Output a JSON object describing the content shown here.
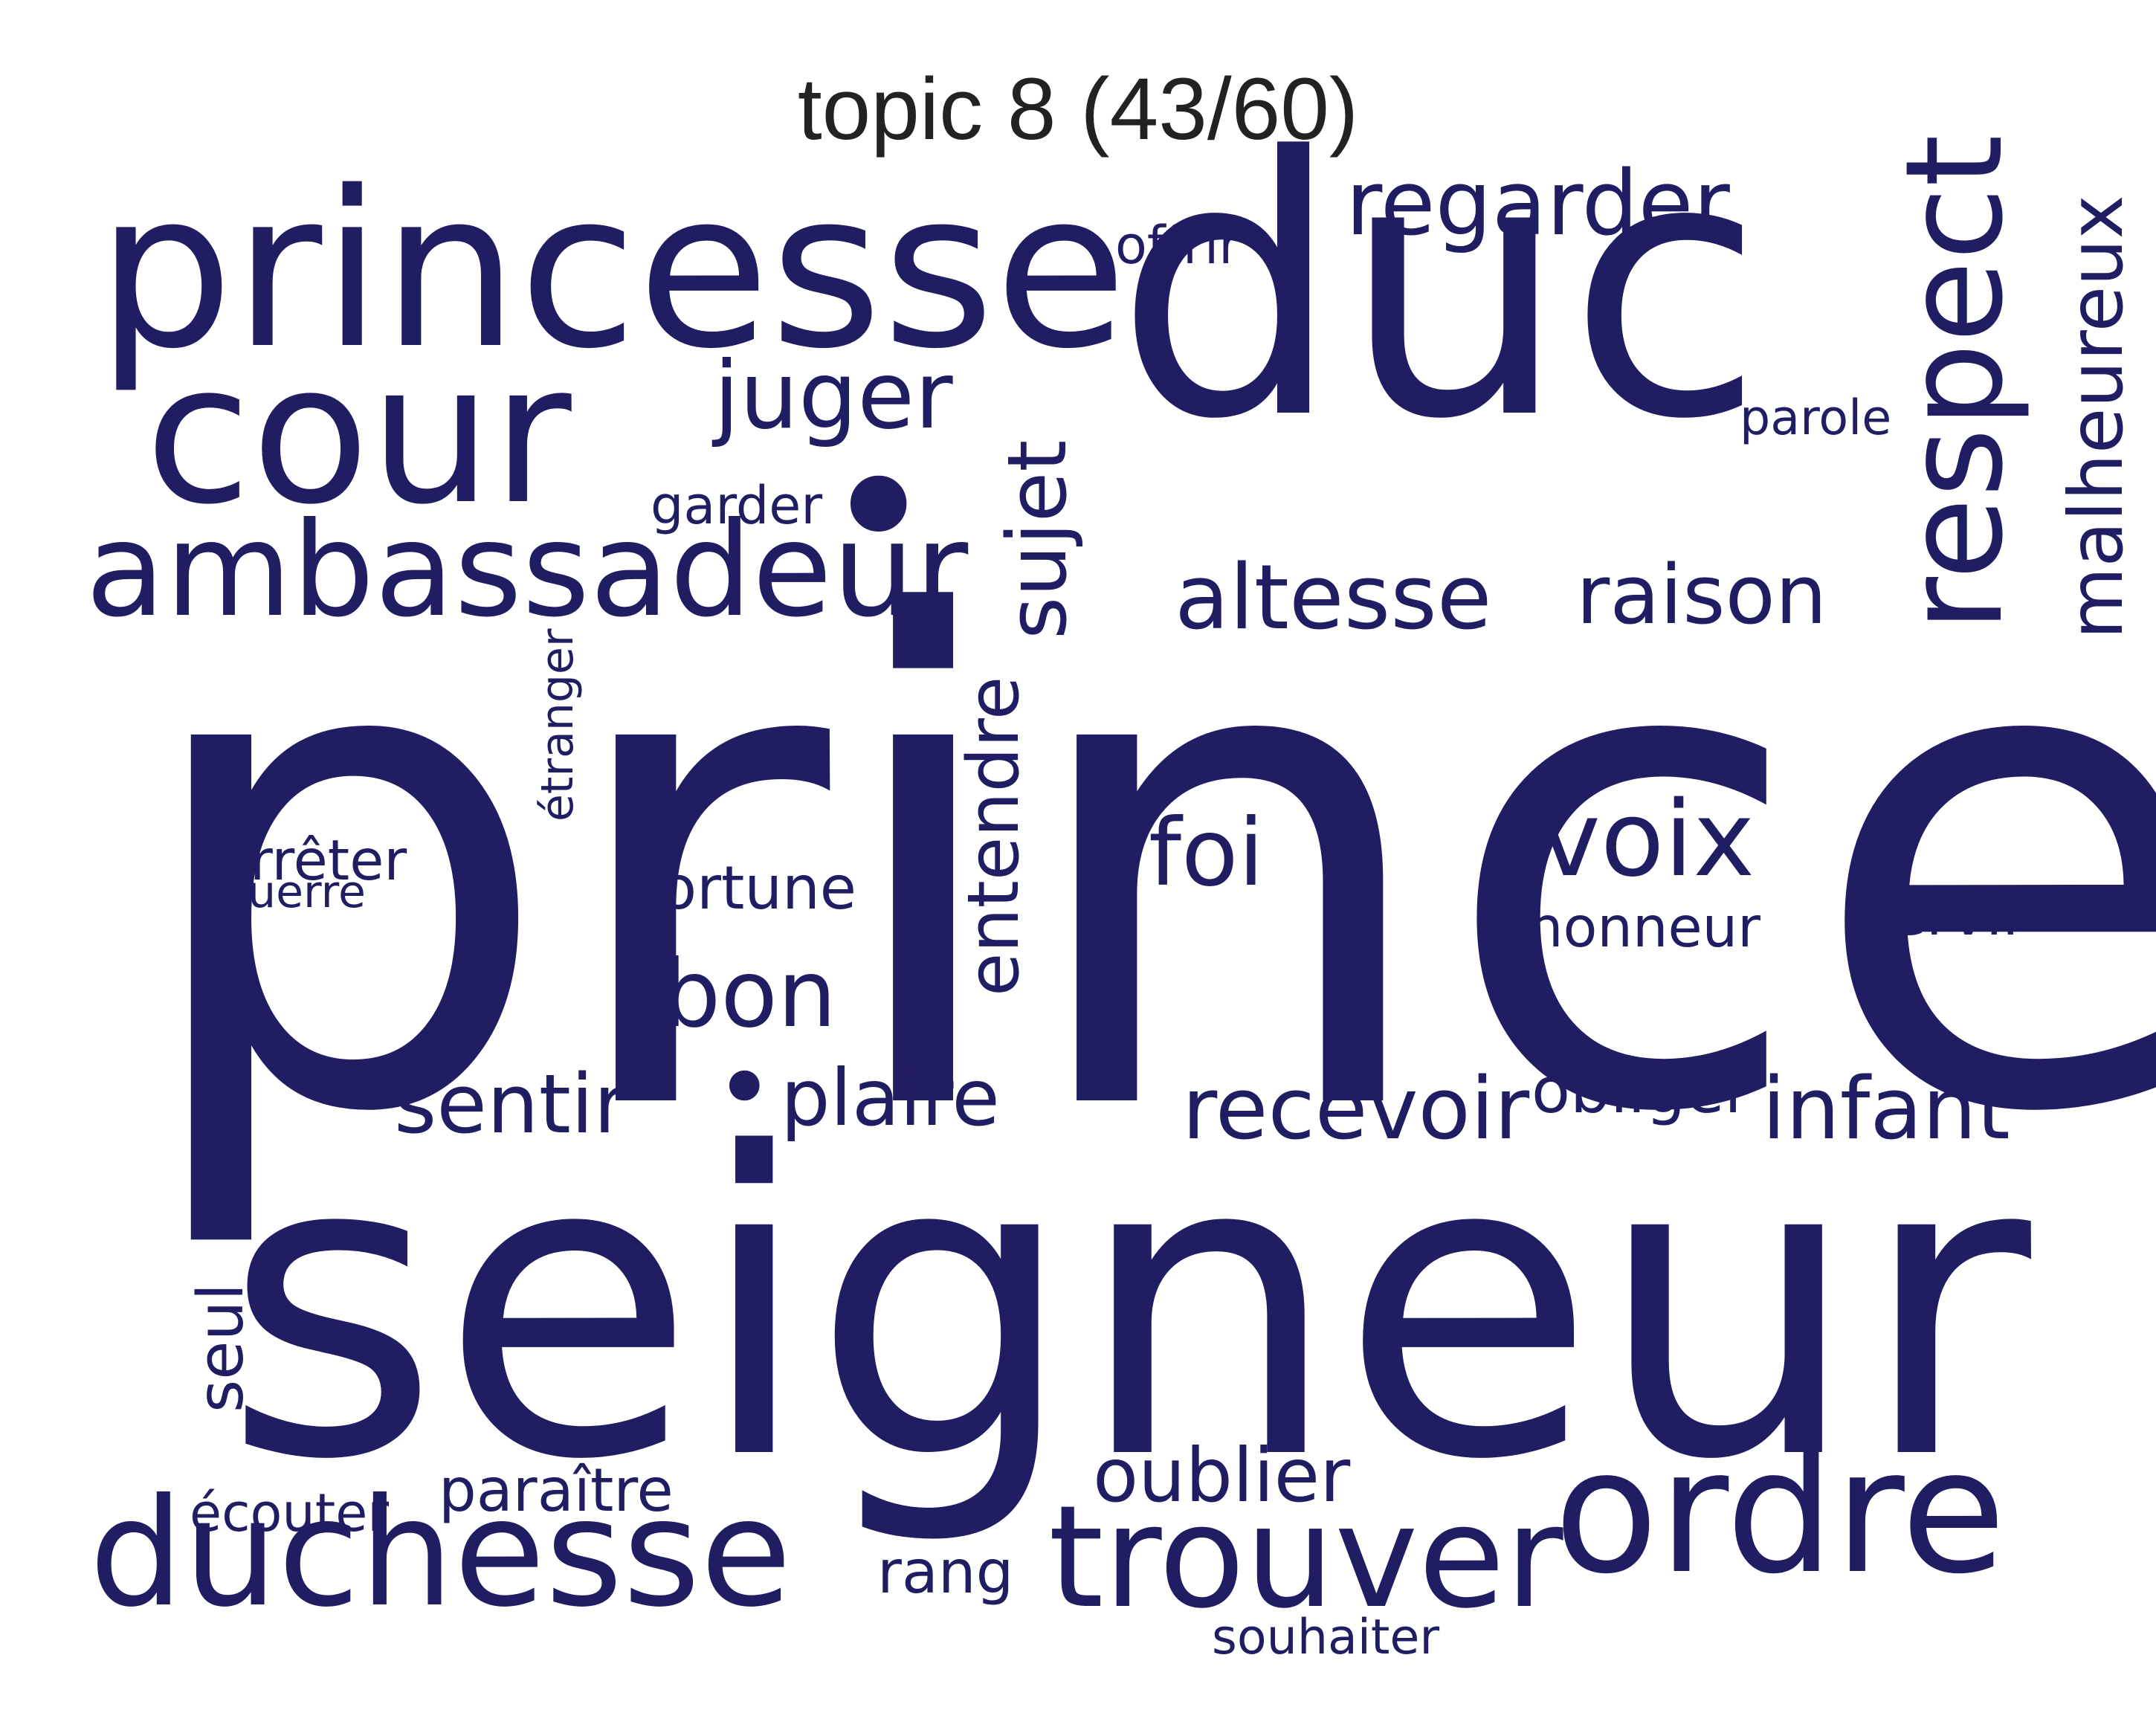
{
  "title": "topic 8 (43/60)",
  "color": "#211d63",
  "words": [
    {
      "text": "prince",
      "orientation": "horizontal"
    },
    {
      "text": "seigneur",
      "orientation": "horizontal"
    },
    {
      "text": "duc",
      "orientation": "horizontal"
    },
    {
      "text": "princesse",
      "orientation": "horizontal"
    },
    {
      "text": "cour",
      "orientation": "horizontal"
    },
    {
      "text": "ambassadeur",
      "orientation": "horizontal"
    },
    {
      "text": "duchesse",
      "orientation": "horizontal"
    },
    {
      "text": "ordre",
      "orientation": "horizontal"
    },
    {
      "text": "trouver",
      "orientation": "horizontal"
    },
    {
      "text": "respect",
      "orientation": "vertical"
    },
    {
      "text": "malheureux",
      "orientation": "vertical"
    },
    {
      "text": "regarder",
      "orientation": "horizontal"
    },
    {
      "text": "juger",
      "orientation": "horizontal"
    },
    {
      "text": "sujet",
      "orientation": "vertical"
    },
    {
      "text": "altesse",
      "orientation": "horizontal"
    },
    {
      "text": "raison",
      "orientation": "horizontal"
    },
    {
      "text": "voix",
      "orientation": "horizontal"
    },
    {
      "text": "foi",
      "orientation": "horizontal"
    },
    {
      "text": "entendre",
      "orientation": "vertical"
    },
    {
      "text": "bon",
      "orientation": "horizontal"
    },
    {
      "text": "sentir",
      "orientation": "horizontal"
    },
    {
      "text": "plaire",
      "orientation": "horizontal"
    },
    {
      "text": "recevoir",
      "orientation": "horizontal"
    },
    {
      "text": "infant",
      "orientation": "horizontal"
    },
    {
      "text": "obliger",
      "orientation": "horizontal"
    },
    {
      "text": "oublier",
      "orientation": "horizontal"
    },
    {
      "text": "servir",
      "orientation": "horizontal"
    },
    {
      "text": "honneur",
      "orientation": "horizontal"
    },
    {
      "text": "fortune",
      "orientation": "horizontal"
    },
    {
      "text": "seul",
      "orientation": "vertical"
    },
    {
      "text": "paraître",
      "orientation": "horizontal"
    },
    {
      "text": "écouter",
      "orientation": "horizontal"
    },
    {
      "text": "rang",
      "orientation": "horizontal"
    },
    {
      "text": "souhaiter",
      "orientation": "horizontal"
    },
    {
      "text": "offrir",
      "orientation": "horizontal"
    },
    {
      "text": "parole",
      "orientation": "horizontal"
    },
    {
      "text": "garder",
      "orientation": "horizontal"
    },
    {
      "text": "étranger",
      "orientation": "vertical"
    },
    {
      "text": "arrêter",
      "orientation": "horizontal"
    },
    {
      "text": "guerre",
      "orientation": "horizontal"
    },
    {
      "text": "•",
      "orientation": "horizontal"
    },
    {
      "text": "•",
      "orientation": "horizontal"
    }
  ]
}
